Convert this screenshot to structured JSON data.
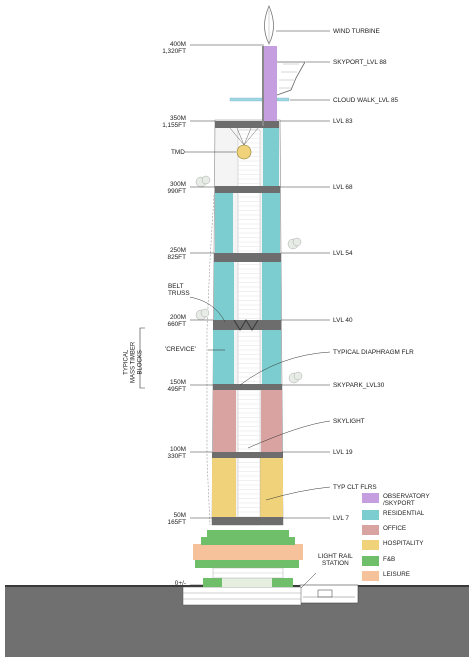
{
  "elevations": [
    {
      "m": "400M",
      "ft": "1,320FT"
    },
    {
      "m": "350M",
      "ft": "1,155FT"
    },
    {
      "m": "300M",
      "ft": "990FT"
    },
    {
      "m": "250M",
      "ft": "825FT"
    },
    {
      "m": "200M",
      "ft": "660FT"
    },
    {
      "m": "150M",
      "ft": "495FT"
    },
    {
      "m": "100M",
      "ft": "330FT"
    },
    {
      "m": "50M",
      "ft": "165FT"
    },
    {
      "m": "0+/-",
      "ft": ""
    }
  ],
  "left_labels": {
    "tmd": "TMD",
    "belt_truss": "BELT\nTRUSS",
    "crevice": "'CREVICE'",
    "typical_mass_timber": "TYPICAL\nMASS TIMBER\nBLOCKS"
  },
  "right_labels": {
    "wind_turbine": "WIND TURBINE",
    "skyport": "SKYPORT_LVL 88",
    "cloud_walk": "CLOUD WALK_LVL 85",
    "lvl83": "LVL 83",
    "lvl68": "LVL 68",
    "lvl54": "LVL 54",
    "lvl40": "LVL 40",
    "diaphragm": "TYPICAL DIAPHRAGM FLR",
    "skypark": "SKYPARK_LVL30",
    "skylight": "SKYLIGHT",
    "lvl19": "LVL 19",
    "clt": "TYP CLT FLRS",
    "lvl7": "LVL 7",
    "light_rail": "LIGHT RAIL\nSTATION"
  },
  "legend": [
    {
      "label": "OBSERVATORY\n/SKYPORT",
      "color": "#c59ee0"
    },
    {
      "label": "RESIDENTIAL",
      "color": "#7ccdcf"
    },
    {
      "label": "OFFICE",
      "color": "#d9a3a1"
    },
    {
      "label": "HOSPITALITY",
      "color": "#efd27a"
    },
    {
      "label": "F&B",
      "color": "#6fbf6a"
    },
    {
      "label": "LEISURE",
      "color": "#f6c29c"
    }
  ],
  "colors": {
    "observatory": "#c59ee0",
    "residential": "#7ccdcf",
    "office": "#d9a3a1",
    "hospitality": "#efd27a",
    "fb": "#6fbf6a",
    "leisure": "#f6c29c",
    "structure": "#6d6d6d",
    "ground": "#707070"
  }
}
